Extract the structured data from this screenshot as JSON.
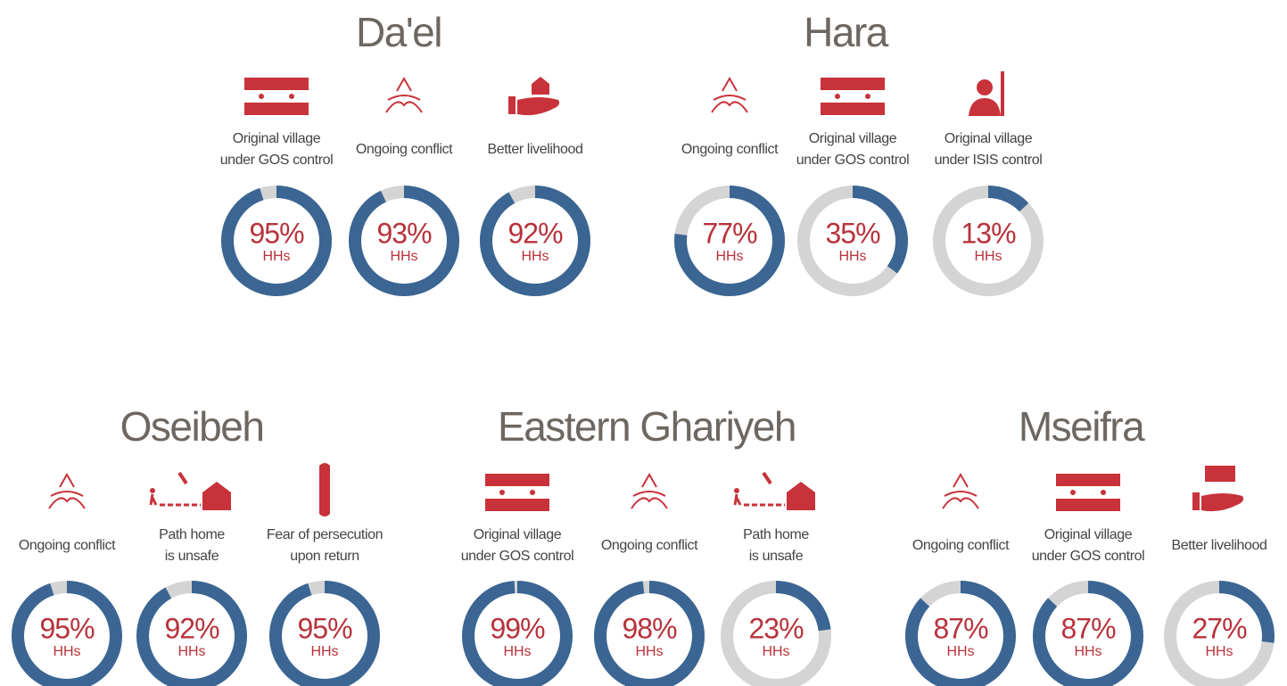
{
  "chart_data": [
    {
      "type": "donut",
      "title": "Da'el",
      "unit_label": "HHs",
      "color": "#3b6593",
      "track_color": "#d4d4d4",
      "categories": [
        [
          "Original village",
          "under GOS control"
        ],
        [
          "Ongoing conflict"
        ],
        [
          "Better livelihood"
        ]
      ],
      "values": [
        95,
        93,
        92
      ],
      "value_labels": [
        "95%",
        "93%",
        "92%"
      ]
    },
    {
      "type": "donut",
      "title": "Hara",
      "unit_label": "HHs",
      "color": "#3b6593",
      "track_color": "#d4d4d4",
      "categories": [
        [
          "Ongoing conflict"
        ],
        [
          "Original village",
          "under GOS control"
        ],
        [
          "Original village",
          "under ISIS control"
        ]
      ],
      "values": [
        77,
        35,
        13
      ],
      "value_labels": [
        "77%",
        "35%",
        "13%"
      ]
    },
    {
      "type": "donut",
      "title": "Oseibeh",
      "unit_label": "HHs",
      "color": "#3b6593",
      "track_color": "#d4d4d4",
      "categories": [
        [
          "Ongoing conflict"
        ],
        [
          "Path home",
          "is unsafe"
        ],
        [
          "Fear of persecution",
          "upon return"
        ]
      ],
      "values": [
        95,
        92,
        95
      ],
      "value_labels": [
        "95%",
        "92%",
        "95%"
      ]
    },
    {
      "type": "donut",
      "title": "Eastern Ghariyeh",
      "unit_label": "HHs",
      "color": "#3b6593",
      "track_color": "#d4d4d4",
      "categories": [
        [
          "Original village",
          "under GOS control"
        ],
        [
          "Ongoing conflict"
        ],
        [
          "Path home",
          "is unsafe"
        ]
      ],
      "values": [
        99,
        98,
        23
      ],
      "value_labels": [
        "99%",
        "98%",
        "23%"
      ]
    },
    {
      "type": "donut",
      "title": "Mseifra",
      "unit_label": "HHs",
      "color": "#3b6593",
      "track_color": "#d4d4d4",
      "categories": [
        [
          "Ongoing conflict"
        ],
        [
          "Original village",
          "under GOS control"
        ],
        [
          "Better livelihood"
        ]
      ],
      "values": [
        87,
        87,
        27
      ],
      "value_labels": [
        "87%",
        "87%",
        "27%"
      ]
    }
  ]
}
